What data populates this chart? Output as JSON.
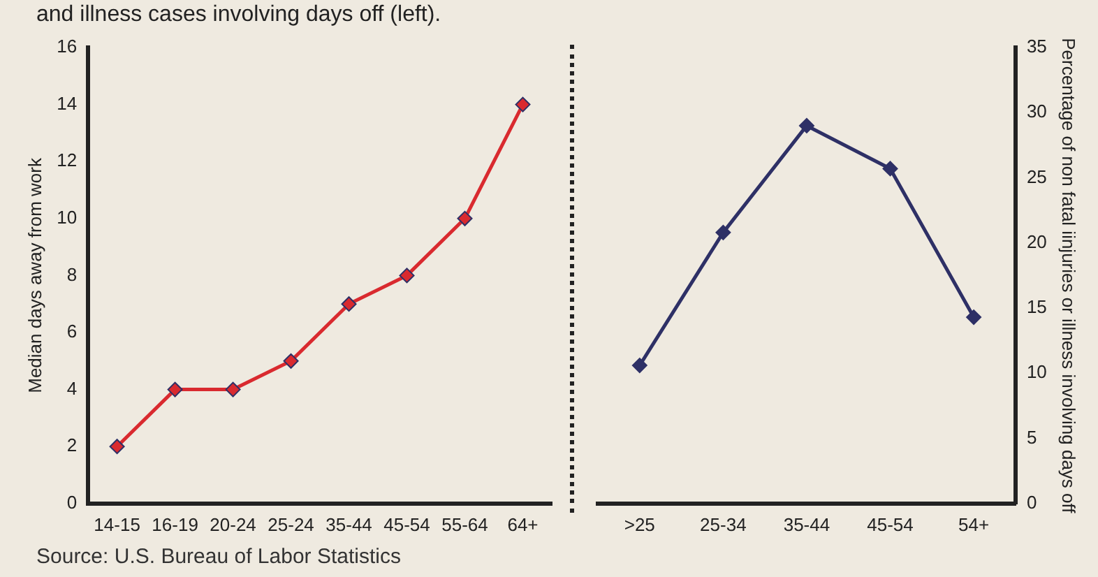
{
  "chart_data": [
    {
      "type": "line",
      "title": "and illness cases involving days off (left).",
      "ylabel": "Median days away from work",
      "categories": [
        "14-15",
        "16-19",
        "20-24",
        "25-24",
        "35-44",
        "45-54",
        "55-64",
        "64+"
      ],
      "series": [
        {
          "color": "#d92a2f",
          "values": [
            2,
            4,
            4,
            5,
            7,
            8,
            10,
            14
          ]
        }
      ],
      "ylim": [
        0,
        16
      ],
      "yticks": [
        0,
        2,
        4,
        6,
        8,
        10,
        12,
        14,
        16
      ],
      "grid": false,
      "legend": false,
      "marker": "diamond",
      "line_style": "solid",
      "annotations": [
        "Source: U.S. Bureau of Labor Statistics"
      ]
    },
    {
      "type": "line",
      "ylabel": "Percentage of non fatal iinjuries or illness involving days off",
      "categories": [
        ">25",
        "25-34",
        "35-44",
        "45-54",
        "54+"
      ],
      "series": [
        {
          "color": "#2e3066",
          "values": [
            10.6,
            20.8,
            29,
            25.7,
            14.3
          ]
        }
      ],
      "ylim": [
        0,
        35
      ],
      "yticks": [
        0,
        5,
        10,
        15,
        20,
        25,
        30,
        35
      ],
      "grid": false,
      "legend": false,
      "marker": "diamond",
      "line_style": "solid"
    }
  ]
}
